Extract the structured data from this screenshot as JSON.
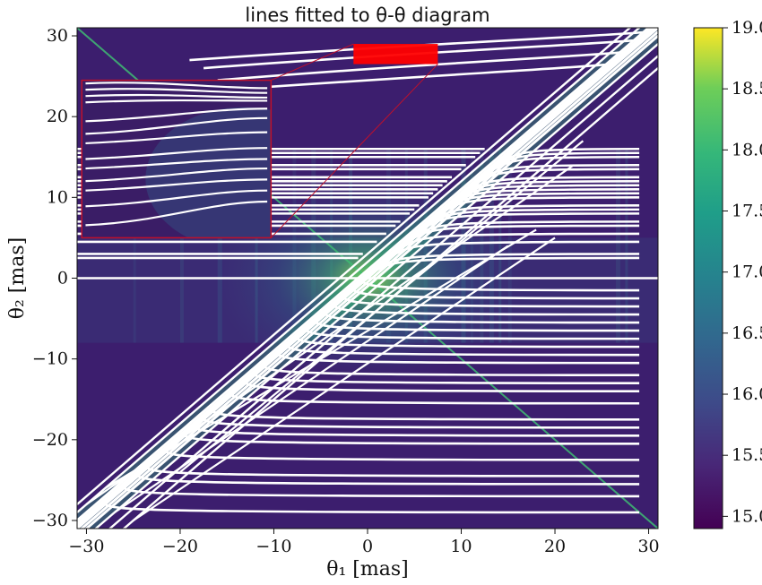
{
  "chart_data": {
    "type": "heatmap",
    "title": "lines fitted to θ-θ diagram",
    "xlabel": "θ₁ [mas]",
    "ylabel": "θ₂ [mas]",
    "xlim": [
      -31,
      31
    ],
    "ylim": [
      -31,
      31
    ],
    "xticks": [
      -30,
      -20,
      -10,
      0,
      10,
      20,
      30
    ],
    "yticks": [
      -30,
      -20,
      -10,
      0,
      10,
      20,
      30
    ],
    "grid": false,
    "colormap": "viridis",
    "colorbar": {
      "min": 14.9,
      "max": 19.0,
      "ticks": [
        "15.0",
        "15.5",
        "16.0",
        "16.5",
        "17.0",
        "17.5",
        "18.0",
        "18.5",
        "19.0"
      ],
      "tick_values": [
        15.0,
        15.5,
        16.0,
        16.5,
        17.0,
        17.5,
        18.0,
        18.5,
        19.0
      ]
    },
    "line_color": "#ffffff",
    "highlight_color": "#ff0000",
    "highlight_region": {
      "x": [
        -1.5,
        7.5
      ],
      "y": [
        26.5,
        29
      ]
    },
    "inset": {
      "x": [
        -30.5,
        -10.3
      ],
      "y": [
        5,
        24.5
      ]
    },
    "fitted_lines": {
      "theta2_levels": [
        30,
        29,
        27.5,
        26,
        16,
        15.5,
        15,
        14,
        13.5,
        12.5,
        12,
        11.5,
        11,
        10.5,
        10,
        9,
        8.5,
        8,
        7,
        6.5,
        5.5,
        4.5,
        3,
        2.5,
        0,
        -1.5,
        -2.5,
        -3.5,
        -4.5,
        -5.5,
        -6.5,
        -7.5,
        -8.5,
        -9.5,
        -10.5,
        -12,
        -13,
        -14,
        -15.5,
        -17.5,
        -18.5,
        -19.5,
        -20.5,
        -22.5,
        -24.5,
        -25.5,
        -27,
        -29
      ],
      "diagonal_offsets": [
        -5,
        -3.5,
        -2,
        -1,
        -0.5,
        0,
        0.3,
        0.6,
        1,
        2,
        3
      ]
    },
    "cross_diagonal": "θ₂ = -θ₁"
  }
}
